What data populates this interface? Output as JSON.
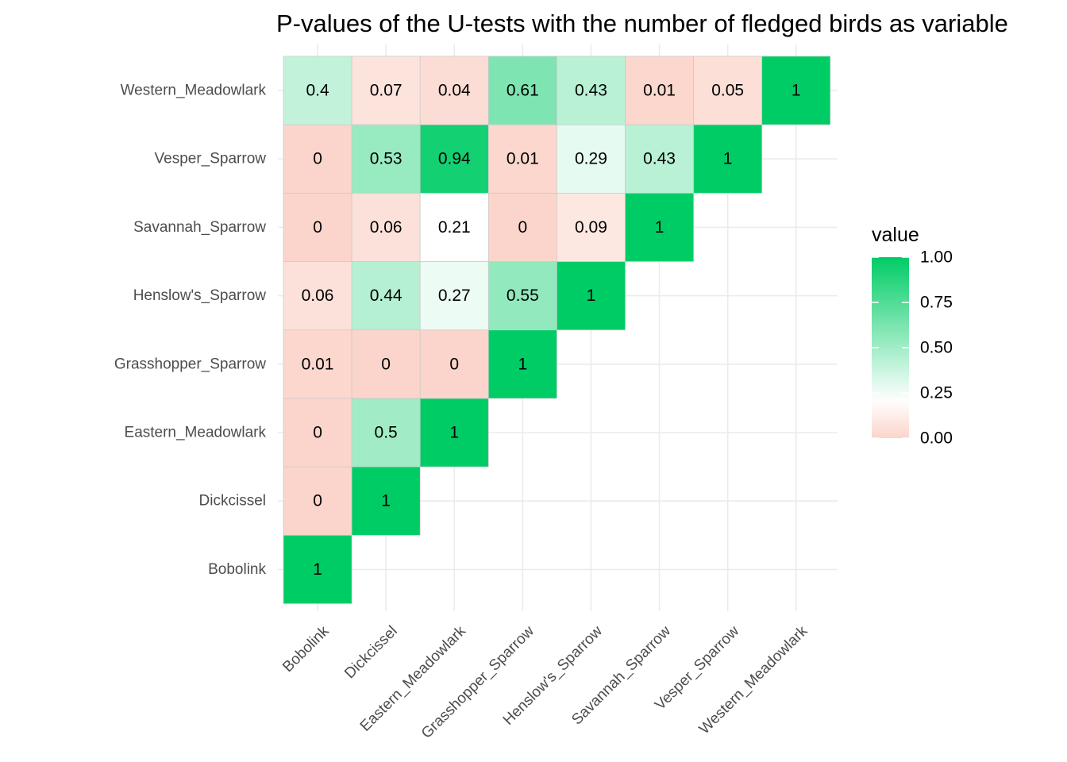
{
  "chart_data": {
    "type": "heatmap",
    "title": "P-values of the U-tests with the number of fledged birds as variable",
    "x_categories": [
      "Bobolink",
      "Dickcissel",
      "Eastern_Meadowlark",
      "Grasshopper_Sparrow",
      "Henslow's_Sparrow",
      "Savannah_Sparrow",
      "Vesper_Sparrow",
      "Western_Meadowlark"
    ],
    "y_categories": [
      "Bobolink",
      "Dickcissel",
      "Eastern_Meadowlark",
      "Grasshopper_Sparrow",
      "Henslow's_Sparrow",
      "Savannah_Sparrow",
      "Vesper_Sparrow",
      "Western_Meadowlark"
    ],
    "cells": [
      {
        "x": "Bobolink",
        "y": "Bobolink",
        "value": 1,
        "label": "1"
      },
      {
        "x": "Bobolink",
        "y": "Dickcissel",
        "value": 0,
        "label": "0"
      },
      {
        "x": "Dickcissel",
        "y": "Dickcissel",
        "value": 1,
        "label": "1"
      },
      {
        "x": "Bobolink",
        "y": "Eastern_Meadowlark",
        "value": 0,
        "label": "0"
      },
      {
        "x": "Dickcissel",
        "y": "Eastern_Meadowlark",
        "value": 0.5,
        "label": "0.5"
      },
      {
        "x": "Eastern_Meadowlark",
        "y": "Eastern_Meadowlark",
        "value": 1,
        "label": "1"
      },
      {
        "x": "Bobolink",
        "y": "Grasshopper_Sparrow",
        "value": 0.01,
        "label": "0.01"
      },
      {
        "x": "Dickcissel",
        "y": "Grasshopper_Sparrow",
        "value": 0,
        "label": "0"
      },
      {
        "x": "Eastern_Meadowlark",
        "y": "Grasshopper_Sparrow",
        "value": 0,
        "label": "0"
      },
      {
        "x": "Grasshopper_Sparrow",
        "y": "Grasshopper_Sparrow",
        "value": 1,
        "label": "1"
      },
      {
        "x": "Bobolink",
        "y": "Henslow's_Sparrow",
        "value": 0.06,
        "label": "0.06"
      },
      {
        "x": "Dickcissel",
        "y": "Henslow's_Sparrow",
        "value": 0.44,
        "label": "0.44"
      },
      {
        "x": "Eastern_Meadowlark",
        "y": "Henslow's_Sparrow",
        "value": 0.27,
        "label": "0.27"
      },
      {
        "x": "Grasshopper_Sparrow",
        "y": "Henslow's_Sparrow",
        "value": 0.55,
        "label": "0.55"
      },
      {
        "x": "Henslow's_Sparrow",
        "y": "Henslow's_Sparrow",
        "value": 1,
        "label": "1"
      },
      {
        "x": "Bobolink",
        "y": "Savannah_Sparrow",
        "value": 0,
        "label": "0"
      },
      {
        "x": "Dickcissel",
        "y": "Savannah_Sparrow",
        "value": 0.06,
        "label": "0.06"
      },
      {
        "x": "Eastern_Meadowlark",
        "y": "Savannah_Sparrow",
        "value": 0.21,
        "label": "0.21"
      },
      {
        "x": "Grasshopper_Sparrow",
        "y": "Savannah_Sparrow",
        "value": 0,
        "label": "0"
      },
      {
        "x": "Henslow's_Sparrow",
        "y": "Savannah_Sparrow",
        "value": 0.09,
        "label": "0.09"
      },
      {
        "x": "Savannah_Sparrow",
        "y": "Savannah_Sparrow",
        "value": 1,
        "label": "1"
      },
      {
        "x": "Bobolink",
        "y": "Vesper_Sparrow",
        "value": 0,
        "label": "0"
      },
      {
        "x": "Dickcissel",
        "y": "Vesper_Sparrow",
        "value": 0.53,
        "label": "0.53"
      },
      {
        "x": "Eastern_Meadowlark",
        "y": "Vesper_Sparrow",
        "value": 0.94,
        "label": "0.94"
      },
      {
        "x": "Grasshopper_Sparrow",
        "y": "Vesper_Sparrow",
        "value": 0.01,
        "label": "0.01"
      },
      {
        "x": "Henslow's_Sparrow",
        "y": "Vesper_Sparrow",
        "value": 0.29,
        "label": "0.29"
      },
      {
        "x": "Savannah_Sparrow",
        "y": "Vesper_Sparrow",
        "value": 0.43,
        "label": "0.43"
      },
      {
        "x": "Vesper_Sparrow",
        "y": "Vesper_Sparrow",
        "value": 1,
        "label": "1"
      },
      {
        "x": "Bobolink",
        "y": "Western_Meadowlark",
        "value": 0.4,
        "label": "0.4"
      },
      {
        "x": "Dickcissel",
        "y": "Western_Meadowlark",
        "value": 0.07,
        "label": "0.07"
      },
      {
        "x": "Eastern_Meadowlark",
        "y": "Western_Meadowlark",
        "value": 0.04,
        "label": "0.04"
      },
      {
        "x": "Grasshopper_Sparrow",
        "y": "Western_Meadowlark",
        "value": 0.61,
        "label": "0.61"
      },
      {
        "x": "Henslow's_Sparrow",
        "y": "Western_Meadowlark",
        "value": 0.43,
        "label": "0.43"
      },
      {
        "x": "Savannah_Sparrow",
        "y": "Western_Meadowlark",
        "value": 0.01,
        "label": "0.01"
      },
      {
        "x": "Vesper_Sparrow",
        "y": "Western_Meadowlark",
        "value": 0.05,
        "label": "0.05"
      },
      {
        "x": "Western_Meadowlark",
        "y": "Western_Meadowlark",
        "value": 1,
        "label": "1"
      }
    ],
    "color_scale": {
      "type": "gradient2",
      "low": "#fbd5cb",
      "mid": "#ffffff",
      "high": "#00cc66",
      "midpoint": 0.21,
      "limits": [
        0,
        1
      ]
    },
    "legend": {
      "title": "value",
      "position": "right",
      "breaks": [
        0,
        0.25,
        0.5,
        0.75,
        1
      ],
      "labels": [
        "0.00",
        "0.25",
        "0.50",
        "0.75",
        "1.00"
      ]
    },
    "grid": true
  }
}
